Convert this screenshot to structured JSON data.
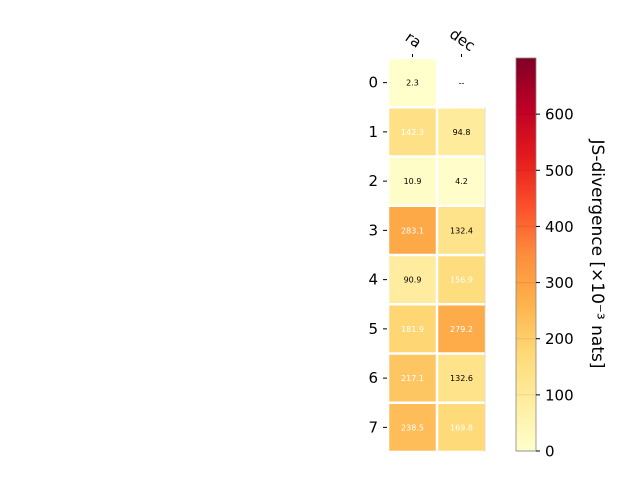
{
  "chart_data": {
    "type": "heatmap",
    "columns": [
      "ra",
      "dec"
    ],
    "rows": [
      "0",
      "1",
      "2",
      "3",
      "4",
      "5",
      "6",
      "7"
    ],
    "values": [
      [
        2.3,
        null
      ],
      [
        142.3,
        94.8
      ],
      [
        10.9,
        4.2
      ],
      [
        283.1,
        132.4
      ],
      [
        90.9,
        156.9
      ],
      [
        181.9,
        279.2
      ],
      [
        217.1,
        132.6
      ],
      [
        238.5,
        169.8
      ]
    ],
    "labels": [
      [
        "2.3",
        "--"
      ],
      [
        "142.3",
        "94.8"
      ],
      [
        "10.9",
        "4.2"
      ],
      [
        "283.1",
        "132.4"
      ],
      [
        "90.9",
        "156.9"
      ],
      [
        "181.9",
        "279.2"
      ],
      [
        "217.1",
        "132.6"
      ],
      [
        "238.5",
        "169.8"
      ]
    ],
    "colorbar": {
      "label": "JS-divergence [×10⁻³ nats]",
      "range": [
        0,
        700
      ],
      "ticks": [
        0,
        100,
        200,
        300,
        400,
        500,
        600
      ],
      "colormap": "YlOrRd"
    }
  }
}
